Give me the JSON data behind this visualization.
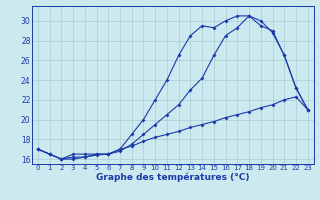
{
  "xlabel": "Graphe des températures (°C)",
  "xlim": [
    -0.5,
    23.5
  ],
  "ylim": [
    15.5,
    31.5
  ],
  "xticks": [
    0,
    1,
    2,
    3,
    4,
    5,
    6,
    7,
    8,
    9,
    10,
    11,
    12,
    13,
    14,
    15,
    16,
    17,
    18,
    19,
    20,
    21,
    22,
    23
  ],
  "yticks": [
    16,
    18,
    20,
    22,
    24,
    26,
    28,
    30
  ],
  "bg_color": "#cce9f0",
  "line_color": "#1a3aaa",
  "grid_color": "#aaccd4",
  "line1_x": [
    0,
    1,
    2,
    3,
    4,
    5,
    6,
    7,
    8,
    9,
    10,
    11,
    12,
    13,
    14,
    15,
    16,
    17,
    18,
    19,
    20,
    21,
    22,
    23
  ],
  "line1_y": [
    17.0,
    16.5,
    16.0,
    16.0,
    16.2,
    16.4,
    16.5,
    16.8,
    17.5,
    18.5,
    19.5,
    20.5,
    21.5,
    23.0,
    24.2,
    26.5,
    28.5,
    29.3,
    30.5,
    30.0,
    28.8,
    26.5,
    23.2,
    21.0
  ],
  "line2_x": [
    0,
    1,
    2,
    3,
    4,
    5,
    6,
    7,
    8,
    9,
    10,
    11,
    12,
    13,
    14,
    15,
    16,
    17,
    18,
    19,
    20,
    21,
    22,
    23
  ],
  "line2_y": [
    17.0,
    16.5,
    16.0,
    16.5,
    16.5,
    16.5,
    16.5,
    17.0,
    18.5,
    20.0,
    22.0,
    24.0,
    26.5,
    28.5,
    29.5,
    29.3,
    30.0,
    30.5,
    30.5,
    29.5,
    29.0,
    26.5,
    23.2,
    21.0
  ],
  "line3_x": [
    0,
    1,
    2,
    3,
    4,
    5,
    6,
    7,
    8,
    9,
    10,
    11,
    12,
    13,
    14,
    15,
    16,
    17,
    18,
    19,
    20,
    21,
    22,
    23
  ],
  "line3_y": [
    17.0,
    16.5,
    16.0,
    16.2,
    16.2,
    16.5,
    16.5,
    17.0,
    17.3,
    17.8,
    18.2,
    18.5,
    18.8,
    19.2,
    19.5,
    19.8,
    20.2,
    20.5,
    20.8,
    21.2,
    21.5,
    22.0,
    22.3,
    21.0
  ]
}
